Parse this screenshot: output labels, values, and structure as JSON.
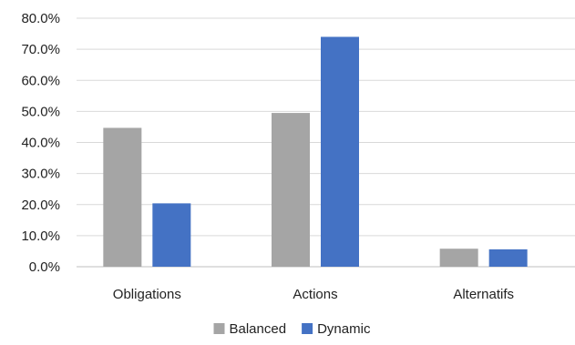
{
  "chart_data": {
    "type": "bar",
    "title": "",
    "xlabel": "",
    "ylabel": "",
    "categories": [
      "Obligations",
      "Actions",
      "Alternatifs"
    ],
    "series": [
      {
        "name": "Balanced",
        "color": "#a5a5a5",
        "values": [
          44.7,
          49.5,
          5.8
        ]
      },
      {
        "name": "Dynamic",
        "color": "#4472c4",
        "values": [
          20.4,
          74.0,
          5.6
        ]
      }
    ],
    "ylim": [
      0,
      80
    ],
    "ytick_step": 10,
    "ytick_labels": [
      "0.0%",
      "10.0%",
      "20.0%",
      "30.0%",
      "40.0%",
      "50.0%",
      "60.0%",
      "70.0%",
      "80.0%"
    ],
    "grid": true,
    "legend_position": "bottom"
  }
}
